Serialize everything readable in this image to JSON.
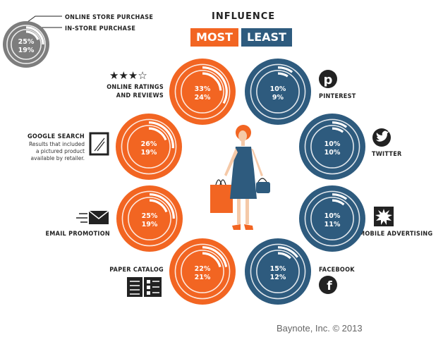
{
  "legend": {
    "online_label": "ONLINE STORE PURCHASE",
    "instore_label": "IN-STORE PURCHASE",
    "online_value": "25%",
    "instore_value": "19%"
  },
  "header": {
    "title": "INFLUENCE",
    "most": "MOST",
    "least": "LEAST"
  },
  "colors": {
    "most": "#f26522",
    "least": "#2e5b7e",
    "legend": "#7d7d7d"
  },
  "channels": [
    {
      "id": "online-ratings",
      "label_lines": [
        "ONLINE RATINGS",
        "AND REVIEWS"
      ],
      "online": "33%",
      "instore": "24%",
      "group": "most",
      "icon": "stars-icon"
    },
    {
      "id": "google-search",
      "label_lines": [
        "GOOGLE SEARCH"
      ],
      "sub_lines": [
        "Results that included",
        "a pictured product",
        "available by retailer."
      ],
      "online": "26%",
      "instore": "19%",
      "group": "most",
      "icon": "picture-frame-icon"
    },
    {
      "id": "email-promotion",
      "label_lines": [
        "EMAIL PROMOTION"
      ],
      "online": "25%",
      "instore": "19%",
      "group": "most",
      "icon": "envelope-icon"
    },
    {
      "id": "paper-catalog",
      "label_lines": [
        "PAPER CATALOG"
      ],
      "online": "22%",
      "instore": "21%",
      "group": "most",
      "icon": "catalog-icon"
    },
    {
      "id": "pinterest",
      "label_lines": [
        "PINTEREST"
      ],
      "online": "10%",
      "instore": "9%",
      "group": "least",
      "icon": "pinterest-icon"
    },
    {
      "id": "twitter",
      "label_lines": [
        "TWITTER"
      ],
      "online": "10%",
      "instore": "10%",
      "group": "least",
      "icon": "twitter-icon"
    },
    {
      "id": "mobile-advertising",
      "label_lines": [
        "MOBILE ADVERTISING"
      ],
      "online": "10%",
      "instore": "11%",
      "group": "least",
      "icon": "starburst-icon"
    },
    {
      "id": "facebook",
      "label_lines": [
        "FACEBOOK"
      ],
      "online": "15%",
      "instore": "12%",
      "group": "least",
      "icon": "facebook-icon"
    }
  ],
  "credit": "Baynote, Inc. © 2013"
}
